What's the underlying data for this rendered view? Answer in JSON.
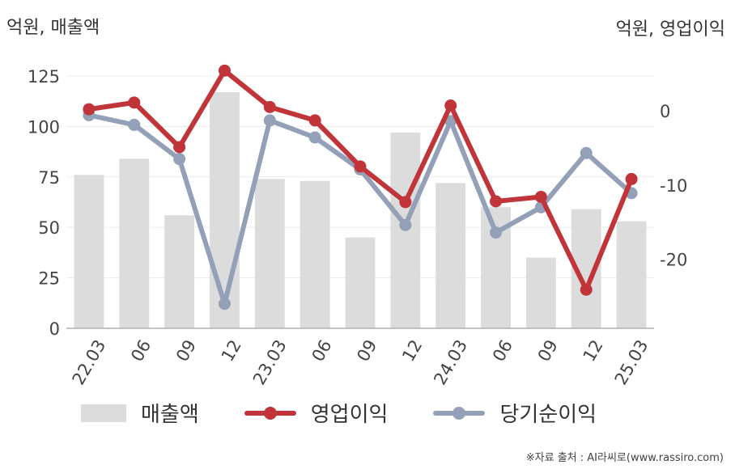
{
  "header": {
    "left_unit": "억원, 매출액",
    "right_unit": "억원, 영업이익"
  },
  "source": "※자료 출처 : AI라씨로(www.rassiro.com)",
  "chart_data": {
    "type": "bar",
    "categories": [
      "22.03",
      "06",
      "09",
      "12",
      "23.03",
      "06",
      "09",
      "12",
      "24.03",
      "06",
      "09",
      "12",
      "25.03"
    ],
    "left_axis": {
      "ylim": [
        0,
        135
      ],
      "ticks": [
        0,
        25,
        50,
        75,
        100,
        125
      ]
    },
    "right_axis": {
      "ylim": [
        -29.3,
        7.4
      ],
      "ticks": [
        0,
        -10,
        -20
      ]
    },
    "grid": true,
    "legend_position": "bottom",
    "series": [
      {
        "name": "매출액",
        "type": "bar",
        "axis": "left",
        "color": "#dcdcdc",
        "values": [
          76,
          84,
          56,
          117,
          74,
          73,
          45,
          97,
          72,
          60,
          35,
          59,
          53
        ]
      },
      {
        "name": "영업이익",
        "type": "line",
        "axis": "right",
        "color": "#c0343a",
        "values": [
          0.2,
          1.1,
          -4.9,
          5.4,
          0.5,
          -1.3,
          -7.5,
          -12.3,
          0.7,
          -12.2,
          -11.6,
          -24.1,
          -9.2
        ]
      },
      {
        "name": "당기순이익",
        "type": "line",
        "axis": "right",
        "color": "#93a0b8",
        "values": [
          -0.6,
          -1.9,
          -6.5,
          -26.0,
          -1.3,
          -3.6,
          -7.9,
          -15.4,
          -1.4,
          -16.4,
          -13.0,
          -5.7,
          -11.1
        ]
      }
    ]
  }
}
